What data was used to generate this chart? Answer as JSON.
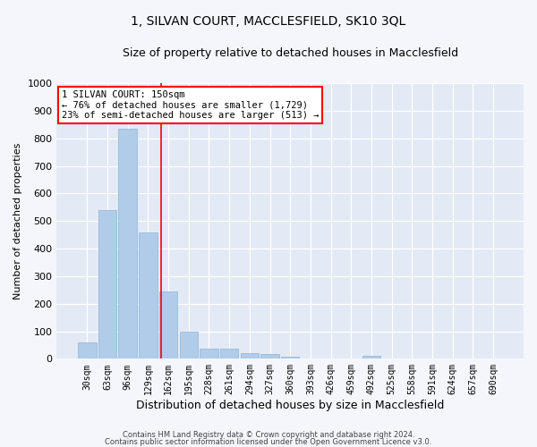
{
  "title": "1, SILVAN COURT, MACCLESFIELD, SK10 3QL",
  "subtitle": "Size of property relative to detached houses in Macclesfield",
  "xlabel": "Distribution of detached houses by size in Macclesfield",
  "ylabel": "Number of detached properties",
  "bar_labels": [
    "30sqm",
    "63sqm",
    "96sqm",
    "129sqm",
    "162sqm",
    "195sqm",
    "228sqm",
    "261sqm",
    "294sqm",
    "327sqm",
    "360sqm",
    "393sqm",
    "426sqm",
    "459sqm",
    "492sqm",
    "525sqm",
    "558sqm",
    "591sqm",
    "624sqm",
    "657sqm",
    "690sqm"
  ],
  "bar_values": [
    58,
    538,
    835,
    460,
    243,
    97,
    37,
    37,
    20,
    18,
    8,
    0,
    0,
    0,
    10,
    0,
    0,
    0,
    0,
    0,
    0
  ],
  "bar_color": "#b0cce8",
  "bar_edgecolor": "#8ab4d8",
  "fig_facecolor": "#f4f6fb",
  "ax_facecolor": "#e4eaf5",
  "grid_color": "#ffffff",
  "property_label": "1 SILVAN COURT: 150sqm",
  "annotation_line1": "← 76% of detached houses are smaller (1,729)",
  "annotation_line2": "23% of semi-detached houses are larger (513) →",
  "vline_pos": 3.636,
  "ylim": [
    0,
    1000
  ],
  "yticks": [
    0,
    100,
    200,
    300,
    400,
    500,
    600,
    700,
    800,
    900,
    1000
  ],
  "title_fontsize": 10,
  "subtitle_fontsize": 9,
  "xlabel_fontsize": 9,
  "ylabel_fontsize": 8,
  "tick_fontsize": 7,
  "annot_fontsize": 7.5,
  "footer1": "Contains HM Land Registry data © Crown copyright and database right 2024.",
  "footer2": "Contains public sector information licensed under the Open Government Licence v3.0."
}
